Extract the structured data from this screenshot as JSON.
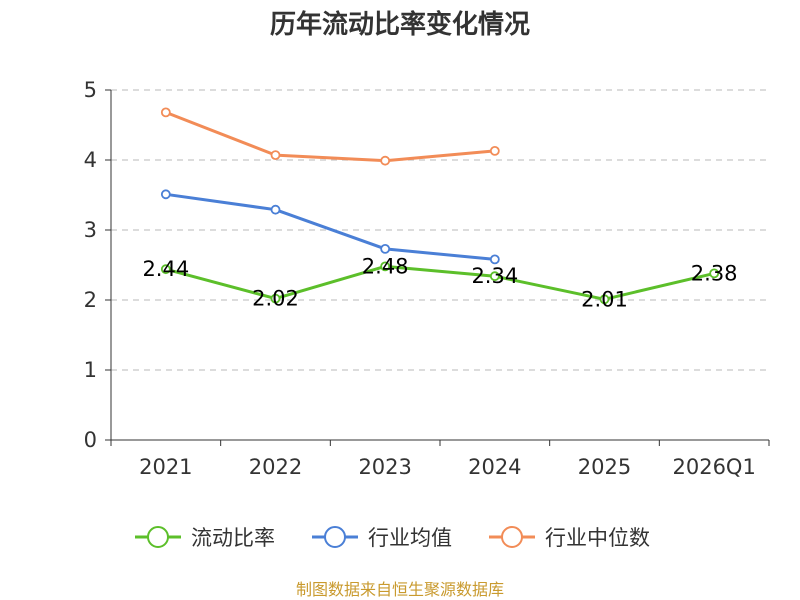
{
  "chart_data": {
    "type": "line",
    "title": "历年流动比率变化情况",
    "categories": [
      "2021",
      "2022",
      "2023",
      "2024",
      "2025",
      "2026Q1"
    ],
    "ylim": [
      0,
      5
    ],
    "yticks": [
      "0",
      "1",
      "2",
      "3",
      "4",
      "5"
    ],
    "grid": true,
    "legend_position": "bottom",
    "series": [
      {
        "name": "流动比率",
        "color": "#5cbf2a",
        "values": [
          2.44,
          2.02,
          2.48,
          2.34,
          2.01,
          2.38
        ],
        "labels": [
          "2.44",
          "2.02",
          "2.48",
          "2.34",
          "2.01",
          "2.38"
        ]
      },
      {
        "name": "行业均值",
        "color": "#4a7fd6",
        "values": [
          3.51,
          3.29,
          2.73,
          2.58,
          null,
          null
        ]
      },
      {
        "name": "行业中位数",
        "color": "#f28c57",
        "values": [
          4.68,
          4.07,
          3.99,
          4.13,
          null,
          null
        ]
      }
    ]
  },
  "source": "制图数据来自恒生聚源数据库"
}
